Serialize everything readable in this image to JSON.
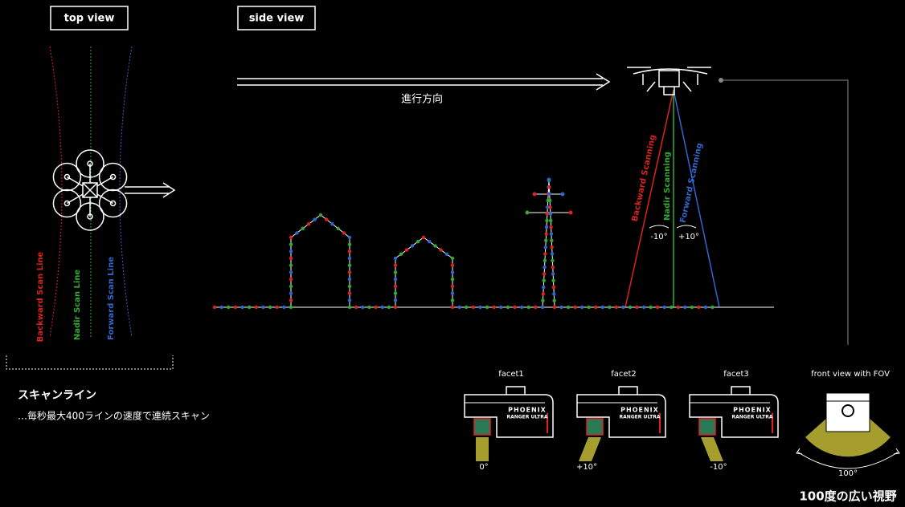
{
  "top_view": {
    "label": "top view",
    "scan_lines": [
      "Backward Scan Line",
      "Nadir Scan Line",
      "Forward Scan Line"
    ]
  },
  "side_view": {
    "label": "side view",
    "direction": "進行方向",
    "scanning": [
      "Backward Scanning",
      "Nadir Scanning",
      "Forward Scanning"
    ],
    "angles": [
      "-10°",
      "+10°"
    ]
  },
  "scan_line": {
    "title": "スキャンライン",
    "description": "…毎秒最大400ラインの速度で連続スキャン"
  },
  "facets": [
    {
      "label": "facet1",
      "brand": "PHOENIX",
      "model": "RANGER ULTRA",
      "angle": "0°"
    },
    {
      "label": "facet2",
      "brand": "PHOENIX",
      "model": "RANGER ULTRA",
      "angle": "+10°"
    },
    {
      "label": "facet3",
      "brand": "PHOENIX",
      "model": "RANGER ULTRA",
      "angle": "-10°"
    }
  ],
  "front_view": {
    "label": "front view with FOV",
    "fov": "100°",
    "caption": "100度の広い視野"
  }
}
